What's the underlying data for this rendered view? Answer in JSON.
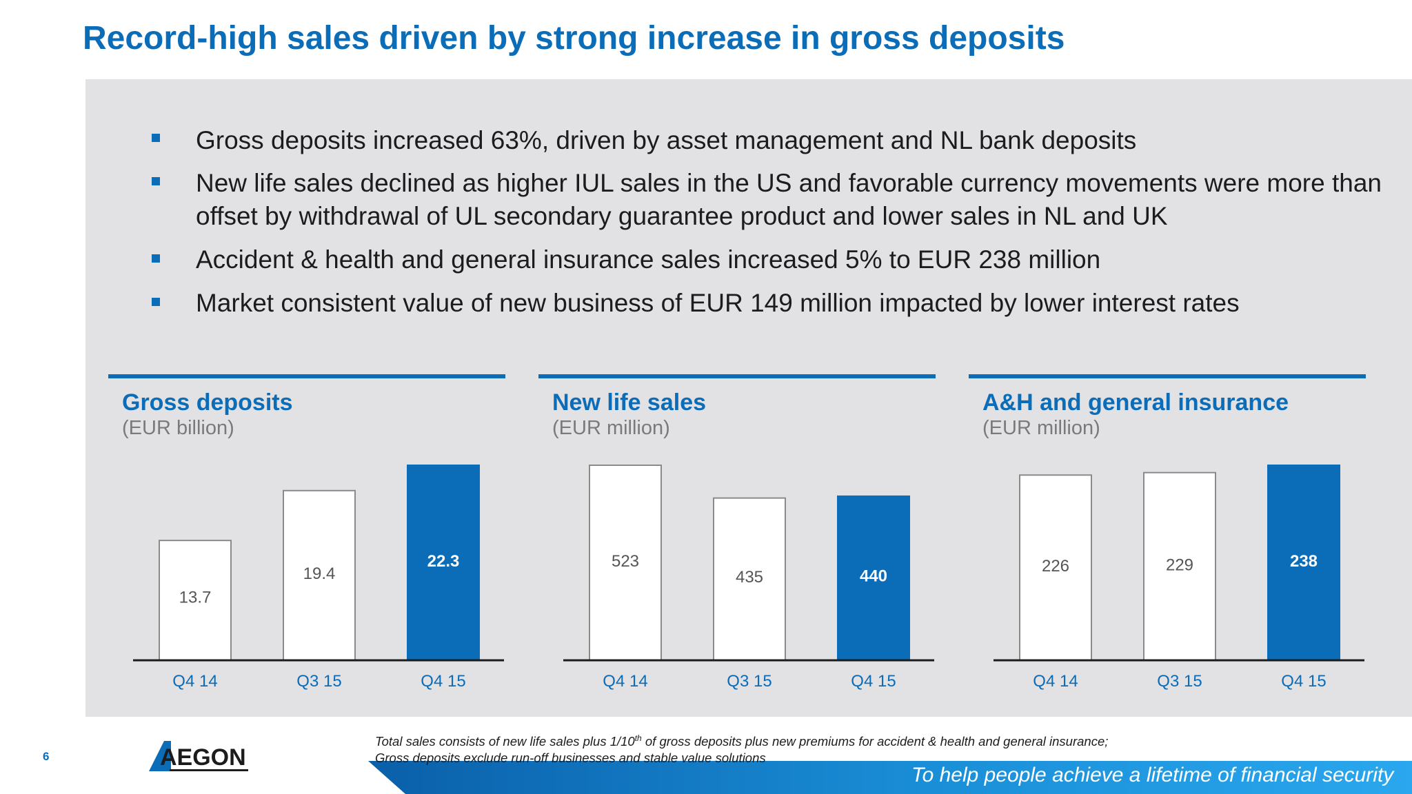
{
  "slide": {
    "title": "Record-high sales driven by strong increase in gross deposits",
    "page_number": "6"
  },
  "bullets": [
    "Gross deposits increased 63%, driven by asset management and NL bank deposits",
    "New life sales declined as higher IUL sales in the US and favorable currency movements were more than offset by withdrawal of UL secondary guarantee product and lower sales in NL and UK",
    "Accident & health and general insurance sales increased 5% to EUR 238 million",
    "Market consistent value of new business of EUR 149 million impacted by lower interest rates"
  ],
  "chart_data": [
    {
      "type": "bar",
      "title": "Gross deposits",
      "subtitle": "(EUR billion)",
      "categories": [
        "Q4 14",
        "Q3 15",
        "Q4 15"
      ],
      "values": [
        13.7,
        19.4,
        22.3
      ],
      "value_labels": [
        "13.7",
        "19.4",
        "22.3"
      ],
      "highlight_index": 2,
      "ylim": [
        0,
        22.3
      ]
    },
    {
      "type": "bar",
      "title": "New life sales",
      "subtitle": "(EUR million)",
      "categories": [
        "Q4 14",
        "Q3 15",
        "Q4 15"
      ],
      "values": [
        523,
        435,
        440
      ],
      "value_labels": [
        "523",
        "435",
        "440"
      ],
      "highlight_index": 2,
      "ylim": [
        0,
        523
      ]
    },
    {
      "type": "bar",
      "title": "A&H and general insurance",
      "subtitle": "(EUR million)",
      "categories": [
        "Q4 14",
        "Q3 15",
        "Q4 15"
      ],
      "values": [
        226,
        229,
        238
      ],
      "value_labels": [
        "226",
        "229",
        "238"
      ],
      "highlight_index": 2,
      "ylim": [
        0,
        238
      ]
    }
  ],
  "footnote": {
    "line1_a": "Total sales consists of new life sales plus 1/10",
    "line1_sup": "th",
    "line1_b": " of gross deposits plus new premiums for accident & health and general insurance;",
    "line2": "Gross deposits exclude run-off businesses and stable value solutions"
  },
  "brand": {
    "logo_text": "AEGON",
    "tagline": "To help people achieve a lifetime of financial security"
  },
  "colors": {
    "accent": "#0b6cb8",
    "panel": "#e2e1e4",
    "bar_neutral": "#ffffff",
    "bar_highlight": "#0b6cb8"
  }
}
